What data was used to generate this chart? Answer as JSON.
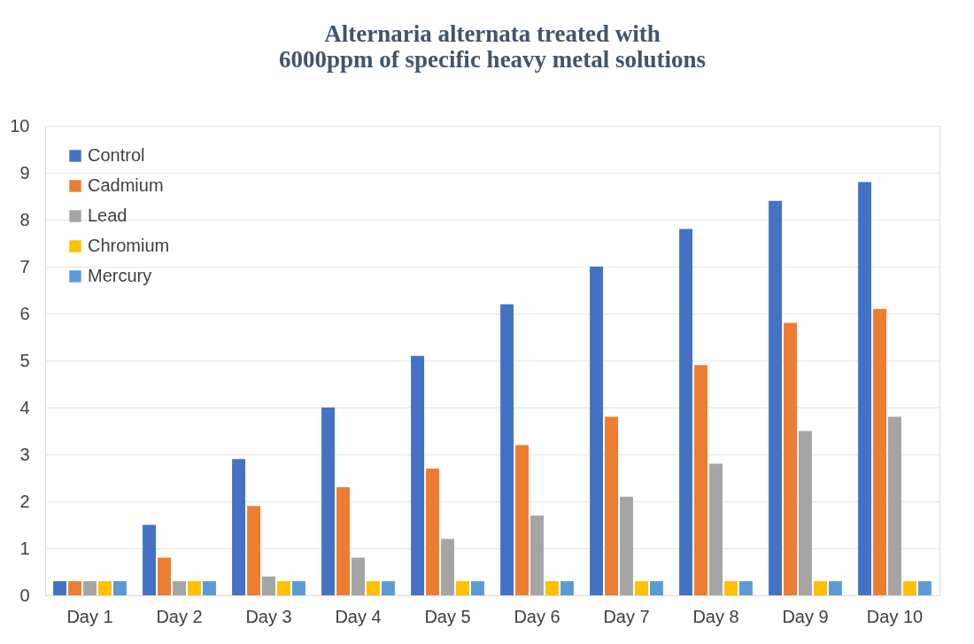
{
  "chart_data": {
    "type": "bar",
    "title": "Alternaria alternata treated with 6000ppm of specific heavy metal solutions",
    "categories": [
      "Day 1",
      "Day 2",
      "Day 3",
      "Day 4",
      "Day 5",
      "Day 6",
      "Day 7",
      "Day 8",
      "Day 9",
      "Day 10"
    ],
    "series": [
      {
        "name": "Control",
        "color": "#4472c4",
        "values": [
          0.3,
          1.5,
          2.9,
          4.0,
          5.1,
          6.2,
          7.0,
          7.8,
          8.4,
          8.8
        ]
      },
      {
        "name": "Cadmium",
        "color": "#ed7d31",
        "values": [
          0.3,
          0.8,
          1.9,
          2.3,
          2.7,
          3.2,
          3.8,
          4.9,
          5.8,
          6.1
        ]
      },
      {
        "name": "Lead",
        "color": "#a5a5a5",
        "values": [
          0.3,
          0.3,
          0.4,
          0.8,
          1.2,
          1.7,
          2.1,
          2.8,
          3.5,
          3.8
        ]
      },
      {
        "name": "Chromium",
        "color": "#ffc000",
        "values": [
          0.3,
          0.3,
          0.3,
          0.3,
          0.3,
          0.3,
          0.3,
          0.3,
          0.3,
          0.3
        ]
      },
      {
        "name": "Mercury",
        "color": "#5b9bd5",
        "values": [
          0.3,
          0.3,
          0.3,
          0.3,
          0.3,
          0.3,
          0.3,
          0.3,
          0.3,
          0.3
        ]
      }
    ],
    "ylim": [
      0,
      10
    ],
    "yticks": [
      0,
      1,
      2,
      3,
      4,
      5,
      6,
      7,
      8,
      9,
      10
    ],
    "grid": "y",
    "legend": "top left"
  }
}
